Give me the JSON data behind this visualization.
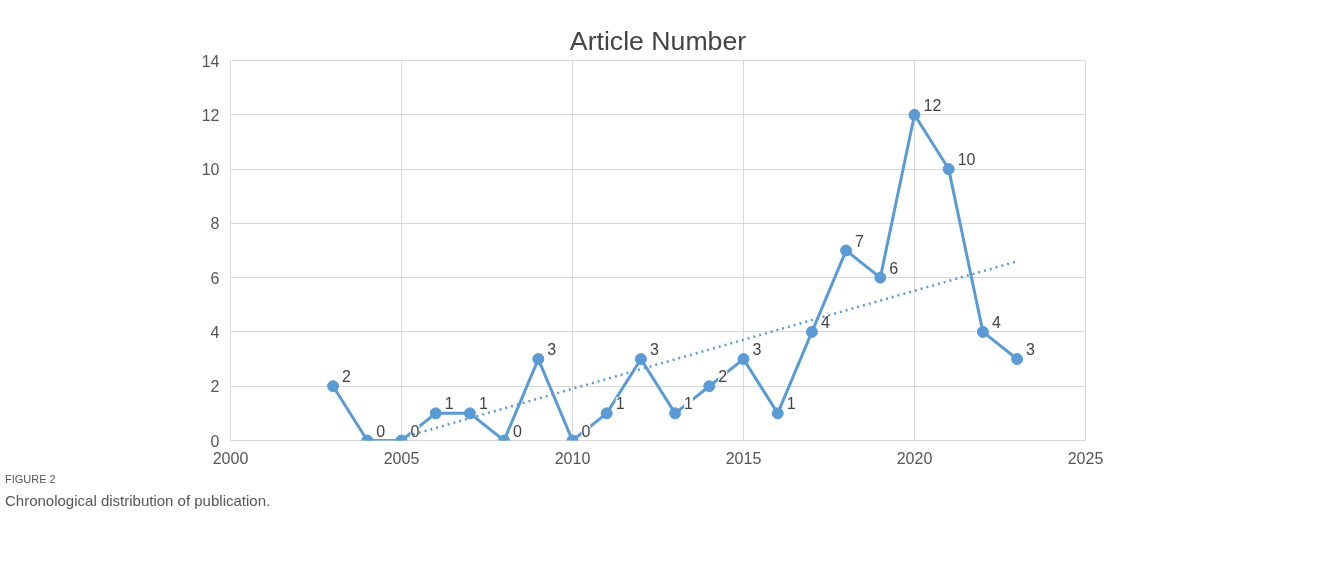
{
  "chart_data": {
    "type": "line",
    "title": "Article Number",
    "x": [
      2003,
      2004,
      2005,
      2006,
      2007,
      2008,
      2009,
      2010,
      2011,
      2012,
      2013,
      2014,
      2015,
      2016,
      2017,
      2018,
      2019,
      2020,
      2021,
      2022,
      2023
    ],
    "series": [
      {
        "color": "#5b9bd5",
        "values": [
          2,
          0,
          0,
          1,
          1,
          0,
          3,
          0,
          1,
          3,
          1,
          2,
          3,
          1,
          4,
          7,
          6,
          12,
          10,
          4,
          3
        ],
        "marker": "circle",
        "line_style": "solid",
        "data_labels": true
      },
      {
        "type": "line",
        "color": "#5b9bd5",
        "x": [
          2005,
          2023
        ],
        "values": [
          0.1,
          6.6
        ],
        "marker": "none",
        "line_style": "dotted"
      }
    ],
    "xlim": [
      2000,
      2025
    ],
    "xticks": [
      2000,
      2005,
      2010,
      2015,
      2020,
      2025
    ],
    "ylim": [
      0,
      14
    ],
    "yticks": [
      0,
      2,
      4,
      6,
      8,
      10,
      12,
      14
    ],
    "grid": true,
    "annotations": [
      "FIGURE 2",
      "Chronological distribution of publication."
    ]
  }
}
